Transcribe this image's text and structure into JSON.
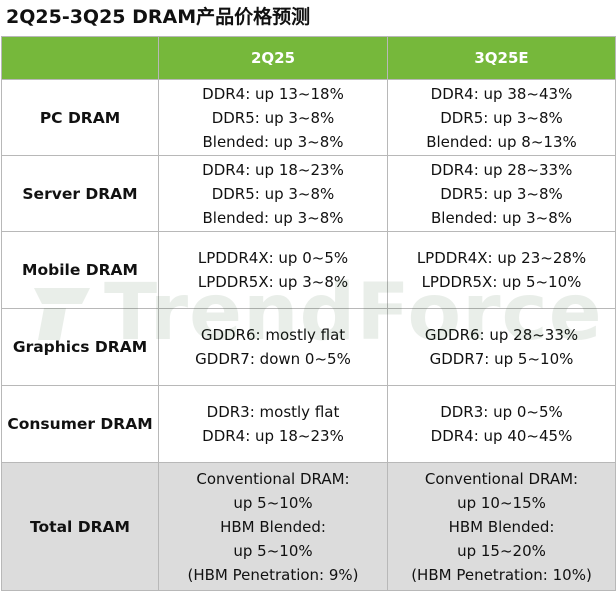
{
  "title": "2Q25-3Q25 DRAM产品价格预测",
  "header": {
    "blank": "",
    "col_2q25": "2Q25",
    "col_3q25e": "3Q25E"
  },
  "rows": [
    {
      "label": "PC DRAM",
      "q2": [
        "DDR4: up 13~18%",
        "DDR5: up 3~8%",
        "Blended: up 3~8%"
      ],
      "q3": [
        "DDR4: up 38~43%",
        "DDR5: up 3~8%",
        "Blended: up 8~13%"
      ]
    },
    {
      "label": "Server DRAM",
      "q2": [
        "DDR4: up 18~23%",
        "DDR5: up 3~8%",
        "Blended: up 3~8%"
      ],
      "q3": [
        "DDR4: up 28~33%",
        "DDR5: up 3~8%",
        "Blended: up 3~8%"
      ]
    },
    {
      "label": "Mobile DRAM",
      "q2": [
        "LPDDR4X: up 0~5%",
        "LPDDR5X: up 3~8%"
      ],
      "q3": [
        "LPDDR4X: up 23~28%",
        "LPDDR5X: up 5~10%"
      ]
    },
    {
      "label": "Graphics DRAM",
      "q2": [
        "GDDR6: mostly flat",
        "GDDR7: down 0~5%"
      ],
      "q3": [
        "GDDR6: up 28~33%",
        "GDDR7: up 5~10%"
      ]
    },
    {
      "label": "Consumer DRAM",
      "q2": [
        "DDR3: mostly flat",
        "DDR4: up 18~23%"
      ],
      "q3": [
        "DDR3: up 0~5%",
        "DDR4: up 40~45%"
      ]
    },
    {
      "label": "Total DRAM",
      "q2": [
        "Conventional DRAM:",
        "up 5~10%",
        "HBM Blended:",
        "up 5~10%",
        "(HBM Penetration: 9%)"
      ],
      "q3": [
        "Conventional DRAM:",
        "up 10~15%",
        "HBM Blended:",
        "up 15~20%",
        "(HBM Penetration: 10%)"
      ]
    }
  ],
  "watermark": "TrendForce",
  "colors": {
    "header_green": "#76b83b",
    "total_row_gray": "#dcdcdc",
    "border": "#b8b8b8"
  }
}
